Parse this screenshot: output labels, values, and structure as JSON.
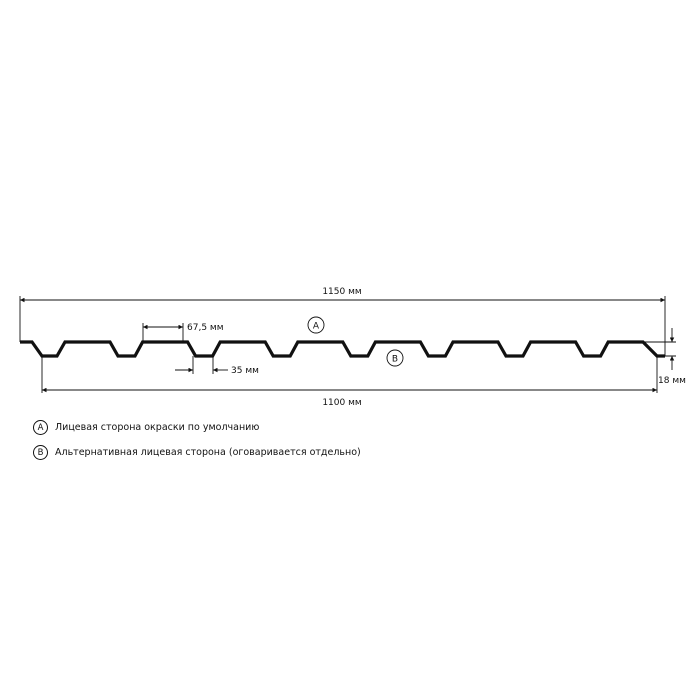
{
  "dimensions": {
    "total_width": "1150 мм",
    "useful_width": "1100 мм",
    "crest_width": "67,5 мм",
    "valley_width": "35 мм",
    "height": "18 мм"
  },
  "markers": {
    "a": "A",
    "b": "B"
  },
  "legend": [
    {
      "marker": "A",
      "text": "Лицевая сторона окраски по умолчанию"
    },
    {
      "marker": "B",
      "text": "Альтернативная лицевая сторона (оговаривается отдельно)"
    }
  ],
  "colors": {
    "line": "#111111",
    "background": "#ffffff"
  }
}
